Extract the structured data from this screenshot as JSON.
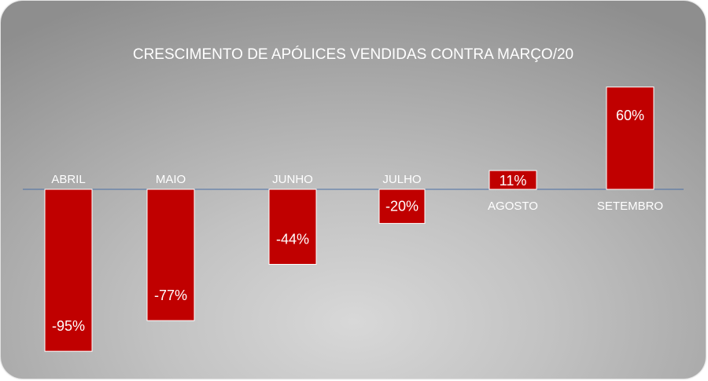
{
  "chart_data": {
    "type": "bar",
    "title": "CRESCIMENTO DE APÓLICES VENDIDAS CONTRA MARÇO/20",
    "xlabel": "",
    "ylabel": "",
    "categories": [
      "ABRIL",
      "MAIO",
      "JUNHO",
      "JULHO",
      "AGOSTO",
      "SETEMBRO"
    ],
    "values": [
      -95,
      -77,
      -44,
      -20,
      11,
      60
    ],
    "value_labels": [
      "-95%",
      "-77%",
      "-44%",
      "-20%",
      "11%",
      "60%"
    ],
    "ylim": [
      -100,
      60
    ],
    "grid": false,
    "legend": "none",
    "colors": {
      "bar": "#c00000",
      "bar_border": "#ffffff",
      "zero_line": "#4a6fa5",
      "text": "#ffffff"
    }
  }
}
